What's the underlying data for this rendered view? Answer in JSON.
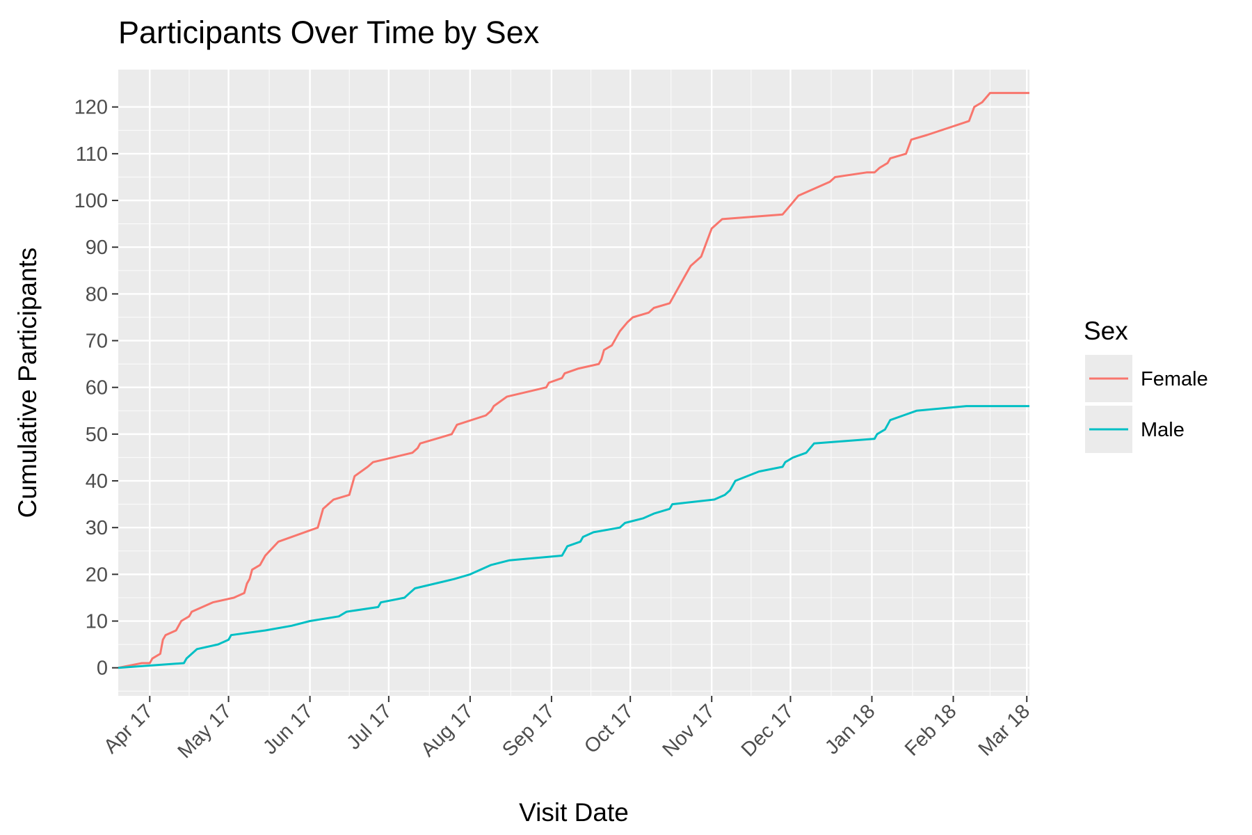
{
  "chart_data": {
    "type": "line",
    "title": "Participants Over Time by Sex",
    "xlabel": "Visit Date",
    "ylabel": "Cumulative Participants",
    "x_type": "date",
    "xlim": [
      "2017-03-20",
      "2018-03-02"
    ],
    "ylim": [
      -6,
      128
    ],
    "x_ticks": [
      {
        "date": "2017-04-01",
        "label": "Apr 17"
      },
      {
        "date": "2017-05-01",
        "label": "May 17"
      },
      {
        "date": "2017-06-01",
        "label": "Jun 17"
      },
      {
        "date": "2017-07-01",
        "label": "Jul 17"
      },
      {
        "date": "2017-08-01",
        "label": "Aug 17"
      },
      {
        "date": "2017-09-01",
        "label": "Sep 17"
      },
      {
        "date": "2017-10-01",
        "label": "Oct 17"
      },
      {
        "date": "2017-11-01",
        "label": "Nov 17"
      },
      {
        "date": "2017-12-01",
        "label": "Dec 17"
      },
      {
        "date": "2018-01-01",
        "label": "Jan 18"
      },
      {
        "date": "2018-02-01",
        "label": "Feb 18"
      },
      {
        "date": "2018-03-01",
        "label": "Mar 18"
      }
    ],
    "y_ticks": [
      0,
      10,
      20,
      30,
      40,
      50,
      60,
      70,
      80,
      90,
      100,
      110,
      120
    ],
    "grid": true,
    "legend": {
      "title": "Sex",
      "position": "right"
    },
    "series": [
      {
        "name": "Female",
        "color": "#F8766D",
        "points": [
          [
            "2017-03-20",
            0
          ],
          [
            "2017-03-29",
            1
          ],
          [
            "2017-04-01",
            1
          ],
          [
            "2017-04-02",
            2
          ],
          [
            "2017-04-05",
            3
          ],
          [
            "2017-04-06",
            6
          ],
          [
            "2017-04-07",
            7
          ],
          [
            "2017-04-11",
            8
          ],
          [
            "2017-04-13",
            10
          ],
          [
            "2017-04-16",
            11
          ],
          [
            "2017-04-17",
            12
          ],
          [
            "2017-04-25",
            14
          ],
          [
            "2017-05-03",
            15
          ],
          [
            "2017-05-07",
            16
          ],
          [
            "2017-05-08",
            18
          ],
          [
            "2017-05-09",
            19
          ],
          [
            "2017-05-10",
            21
          ],
          [
            "2017-05-13",
            22
          ],
          [
            "2017-05-15",
            24
          ],
          [
            "2017-05-20",
            27
          ],
          [
            "2017-06-04",
            30
          ],
          [
            "2017-06-05",
            32
          ],
          [
            "2017-06-06",
            34
          ],
          [
            "2017-06-10",
            36
          ],
          [
            "2017-06-16",
            37
          ],
          [
            "2017-06-18",
            41
          ],
          [
            "2017-06-23",
            43
          ],
          [
            "2017-06-25",
            44
          ],
          [
            "2017-07-10",
            46
          ],
          [
            "2017-07-12",
            47
          ],
          [
            "2017-07-13",
            48
          ],
          [
            "2017-07-25",
            50
          ],
          [
            "2017-07-27",
            52
          ],
          [
            "2017-08-07",
            54
          ],
          [
            "2017-08-09",
            55
          ],
          [
            "2017-08-10",
            56
          ],
          [
            "2017-08-15",
            58
          ],
          [
            "2017-08-30",
            60
          ],
          [
            "2017-08-31",
            61
          ],
          [
            "2017-09-05",
            62
          ],
          [
            "2017-09-06",
            63
          ],
          [
            "2017-09-11",
            64
          ],
          [
            "2017-09-19",
            65
          ],
          [
            "2017-09-20",
            66
          ],
          [
            "2017-09-21",
            68
          ],
          [
            "2017-09-24",
            69
          ],
          [
            "2017-09-26",
            71
          ],
          [
            "2017-09-27",
            72
          ],
          [
            "2017-09-30",
            74
          ],
          [
            "2017-10-02",
            75
          ],
          [
            "2017-10-08",
            76
          ],
          [
            "2017-10-10",
            77
          ],
          [
            "2017-10-16",
            78
          ],
          [
            "2017-10-19",
            81
          ],
          [
            "2017-10-22",
            84
          ],
          [
            "2017-10-24",
            86
          ],
          [
            "2017-10-28",
            88
          ],
          [
            "2017-11-01",
            94
          ],
          [
            "2017-11-05",
            96
          ],
          [
            "2017-11-28",
            97
          ],
          [
            "2017-12-01",
            99
          ],
          [
            "2017-12-04",
            101
          ],
          [
            "2017-12-16",
            104
          ],
          [
            "2017-12-18",
            105
          ],
          [
            "2017-12-30",
            106
          ],
          [
            "2018-01-02",
            106
          ],
          [
            "2018-01-04",
            107
          ],
          [
            "2018-01-07",
            108
          ],
          [
            "2018-01-08",
            109
          ],
          [
            "2018-01-14",
            110
          ],
          [
            "2018-01-16",
            113
          ],
          [
            "2018-01-22",
            114
          ],
          [
            "2018-02-07",
            117
          ],
          [
            "2018-02-09",
            120
          ],
          [
            "2018-02-12",
            121
          ],
          [
            "2018-02-15",
            123
          ],
          [
            "2018-03-02",
            123
          ]
        ]
      },
      {
        "name": "Male",
        "color": "#00BFC4",
        "points": [
          [
            "2017-03-20",
            0
          ],
          [
            "2017-04-14",
            1
          ],
          [
            "2017-04-15",
            2
          ],
          [
            "2017-04-19",
            4
          ],
          [
            "2017-04-27",
            5
          ],
          [
            "2017-05-01",
            6
          ],
          [
            "2017-05-02",
            7
          ],
          [
            "2017-05-15",
            8
          ],
          [
            "2017-05-25",
            9
          ],
          [
            "2017-06-01",
            10
          ],
          [
            "2017-06-12",
            11
          ],
          [
            "2017-06-15",
            12
          ],
          [
            "2017-06-27",
            13
          ],
          [
            "2017-06-28",
            14
          ],
          [
            "2017-07-07",
            15
          ],
          [
            "2017-07-09",
            16
          ],
          [
            "2017-07-11",
            17
          ],
          [
            "2017-07-26",
            19
          ],
          [
            "2017-08-01",
            20
          ],
          [
            "2017-08-09",
            22
          ],
          [
            "2017-08-16",
            23
          ],
          [
            "2017-09-05",
            24
          ],
          [
            "2017-09-07",
            26
          ],
          [
            "2017-09-12",
            27
          ],
          [
            "2017-09-13",
            28
          ],
          [
            "2017-09-17",
            29
          ],
          [
            "2017-09-27",
            30
          ],
          [
            "2017-09-29",
            31
          ],
          [
            "2017-10-06",
            32
          ],
          [
            "2017-10-10",
            33
          ],
          [
            "2017-10-16",
            34
          ],
          [
            "2017-10-17",
            35
          ],
          [
            "2017-11-02",
            36
          ],
          [
            "2017-11-06",
            37
          ],
          [
            "2017-11-08",
            38
          ],
          [
            "2017-11-10",
            40
          ],
          [
            "2017-11-19",
            42
          ],
          [
            "2017-11-28",
            43
          ],
          [
            "2017-11-29",
            44
          ],
          [
            "2017-12-02",
            45
          ],
          [
            "2017-12-07",
            46
          ],
          [
            "2017-12-10",
            48
          ],
          [
            "2018-01-02",
            49
          ],
          [
            "2018-01-03",
            50
          ],
          [
            "2018-01-06",
            51
          ],
          [
            "2018-01-08",
            53
          ],
          [
            "2018-01-13",
            54
          ],
          [
            "2018-01-18",
            55
          ],
          [
            "2018-02-06",
            56
          ],
          [
            "2018-03-02",
            56
          ]
        ]
      }
    ]
  }
}
